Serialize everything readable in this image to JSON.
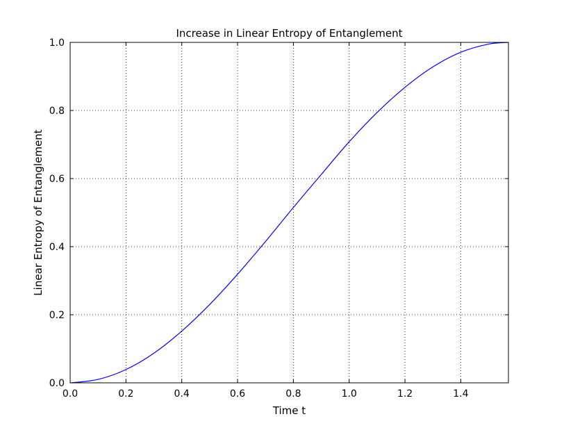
{
  "chart_data": {
    "type": "line",
    "title": "Increase in Linear Entropy of Entanglement",
    "xlabel": "Time t",
    "ylabel": "Linear Entropy of Entanglement",
    "xlim": [
      0.0,
      1.5708
    ],
    "ylim": [
      0.0,
      1.0
    ],
    "xticks": [
      0.0,
      0.2,
      0.4,
      0.6,
      0.8,
      1.0,
      1.2,
      1.4
    ],
    "xtick_labels": [
      "0.0",
      "0.2",
      "0.4",
      "0.6",
      "0.8",
      "1.0",
      "1.2",
      "1.4"
    ],
    "yticks": [
      0.0,
      0.2,
      0.4,
      0.6,
      0.8,
      1.0
    ],
    "ytick_labels": [
      "0.0",
      "0.2",
      "0.4",
      "0.6",
      "0.8",
      "1.0"
    ],
    "grid": true,
    "grid_style": "dotted",
    "series": [
      {
        "color": "#0000ff",
        "x": [
          0.0,
          0.1,
          0.2,
          0.3,
          0.4,
          0.5,
          0.6,
          0.7,
          0.8,
          0.9,
          1.0,
          1.1,
          1.2,
          1.3,
          1.4,
          1.5,
          1.5708
        ],
        "y": [
          0.0,
          0.01,
          0.039,
          0.087,
          0.152,
          0.23,
          0.319,
          0.415,
          0.515,
          0.612,
          0.708,
          0.794,
          0.868,
          0.928,
          0.971,
          0.995,
          1.0
        ]
      }
    ]
  }
}
